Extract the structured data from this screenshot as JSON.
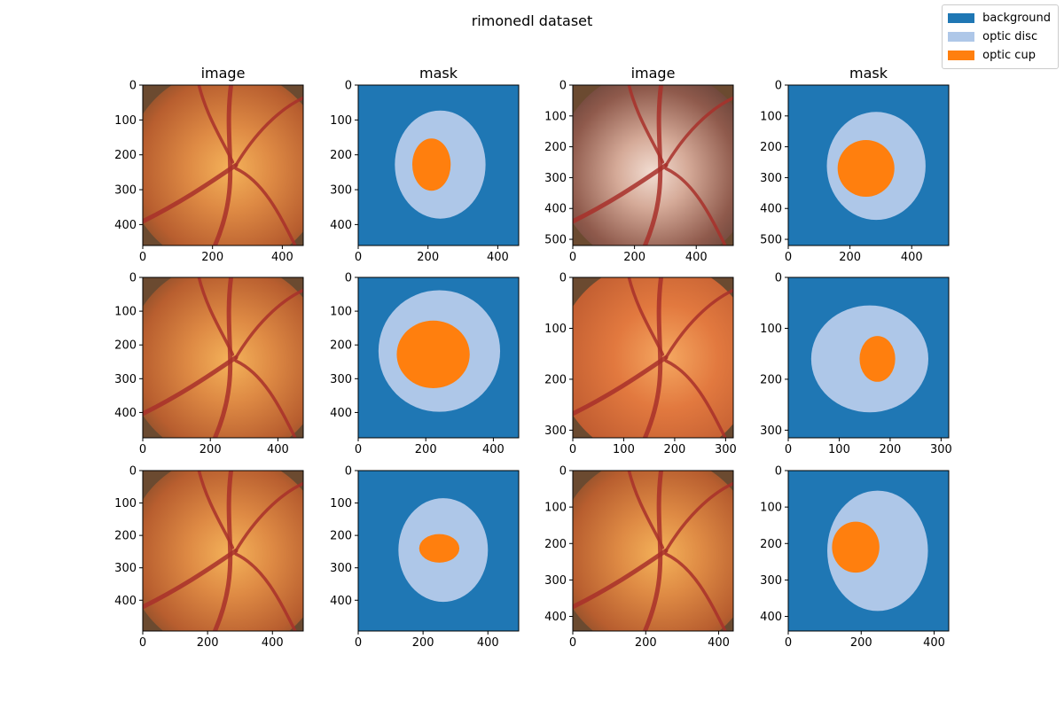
{
  "figure": {
    "title": "rimonedl dataset"
  },
  "legend": {
    "placement": "top-right",
    "items": [
      {
        "label": "background",
        "color": "#1f77b4"
      },
      {
        "label": "optic disc",
        "color": "#aec7e8"
      },
      {
        "label": "optic cup",
        "color": "#ff7f0e"
      }
    ]
  },
  "chart_data": [
    {
      "type": "image",
      "title": "image",
      "xlim": [
        0,
        460
      ],
      "ylim": [
        460,
        0
      ],
      "xticks": [
        0,
        200,
        400
      ],
      "yticks": [
        0,
        100,
        200,
        300,
        400
      ],
      "content": "fundus photograph"
    },
    {
      "type": "image",
      "title": "mask",
      "xlim": [
        0,
        460
      ],
      "ylim": [
        460,
        0
      ],
      "xticks": [
        0,
        200,
        400
      ],
      "yticks": [
        0,
        100,
        200,
        300,
        400
      ],
      "content": "segmentation mask",
      "disc": {
        "cx": 235,
        "cy": 228,
        "rx": 130,
        "ry": 155
      },
      "cup": {
        "cx": 210,
        "cy": 228,
        "rx": 55,
        "ry": 75
      }
    },
    {
      "type": "image",
      "title": "image",
      "xlim": [
        0,
        520
      ],
      "ylim": [
        520,
        0
      ],
      "xticks": [
        0,
        200,
        400
      ],
      "yticks": [
        0,
        100,
        200,
        300,
        400,
        500
      ],
      "content": "fundus photograph"
    },
    {
      "type": "image",
      "title": "mask",
      "xlim": [
        0,
        520
      ],
      "ylim": [
        520,
        0
      ],
      "xticks": [
        0,
        200,
        400
      ],
      "yticks": [
        0,
        100,
        200,
        300,
        400,
        500
      ],
      "content": "segmentation mask",
      "disc": {
        "cx": 285,
        "cy": 262,
        "rx": 160,
        "ry": 175
      },
      "cup": {
        "cx": 252,
        "cy": 270,
        "rx": 92,
        "ry": 92
      }
    },
    {
      "type": "image",
      "title": "",
      "xlim": [
        0,
        475
      ],
      "ylim": [
        475,
        0
      ],
      "xticks": [
        0,
        200,
        400
      ],
      "yticks": [
        0,
        100,
        200,
        300,
        400
      ],
      "content": "fundus photograph"
    },
    {
      "type": "image",
      "title": "",
      "xlim": [
        0,
        475
      ],
      "ylim": [
        475,
        0
      ],
      "xticks": [
        0,
        200,
        400
      ],
      "yticks": [
        0,
        100,
        200,
        300,
        400
      ],
      "content": "segmentation mask",
      "disc": {
        "cx": 240,
        "cy": 218,
        "rx": 180,
        "ry": 180
      },
      "cup": {
        "cx": 222,
        "cy": 228,
        "rx": 108,
        "ry": 100
      }
    },
    {
      "type": "image",
      "title": "",
      "xlim": [
        0,
        315
      ],
      "ylim": [
        315,
        0
      ],
      "xticks": [
        0,
        100,
        200,
        300
      ],
      "yticks": [
        0,
        100,
        200,
        300
      ],
      "content": "fundus photograph"
    },
    {
      "type": "image",
      "title": "",
      "xlim": [
        0,
        315
      ],
      "ylim": [
        315,
        0
      ],
      "xticks": [
        0,
        100,
        200,
        300
      ],
      "yticks": [
        0,
        100,
        200,
        300
      ],
      "content": "segmentation mask",
      "disc": {
        "cx": 160,
        "cy": 160,
        "rx": 115,
        "ry": 105
      },
      "cup": {
        "cx": 175,
        "cy": 160,
        "rx": 35,
        "ry": 45
      }
    },
    {
      "type": "image",
      "title": "",
      "xlim": [
        0,
        495
      ],
      "ylim": [
        495,
        0
      ],
      "xticks": [
        0,
        200,
        400
      ],
      "yticks": [
        0,
        100,
        200,
        300,
        400
      ],
      "content": "fundus photograph"
    },
    {
      "type": "image",
      "title": "",
      "xlim": [
        0,
        495
      ],
      "ylim": [
        495,
        0
      ],
      "xticks": [
        0,
        200,
        400
      ],
      "yticks": [
        0,
        100,
        200,
        300,
        400
      ],
      "content": "segmentation mask",
      "disc": {
        "cx": 262,
        "cy": 245,
        "rx": 138,
        "ry": 160
      },
      "cup": {
        "cx": 250,
        "cy": 240,
        "rx": 62,
        "ry": 44
      }
    },
    {
      "type": "image",
      "title": "",
      "xlim": [
        0,
        440
      ],
      "ylim": [
        440,
        0
      ],
      "xticks": [
        0,
        200,
        400
      ],
      "yticks": [
        0,
        100,
        200,
        300,
        400
      ],
      "content": "fundus photograph"
    },
    {
      "type": "image",
      "title": "",
      "xlim": [
        0,
        440
      ],
      "ylim": [
        440,
        0
      ],
      "xticks": [
        0,
        200,
        400
      ],
      "yticks": [
        0,
        100,
        200,
        300,
        400
      ],
      "content": "segmentation mask",
      "disc": {
        "cx": 245,
        "cy": 220,
        "rx": 138,
        "ry": 165
      },
      "cup": {
        "cx": 185,
        "cy": 210,
        "rx": 65,
        "ry": 70
      }
    }
  ]
}
